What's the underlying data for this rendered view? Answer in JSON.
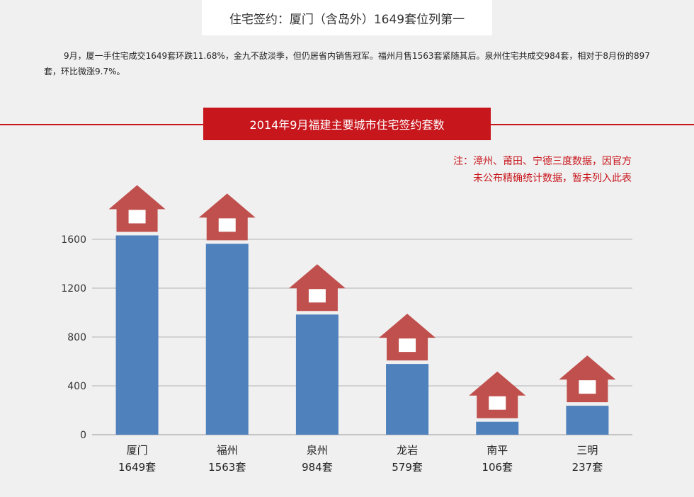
{
  "headline": "住宅签约：厦门（含岛外）1649套位列第一",
  "summary": "9月，厦一手住宅成交1649套环跌11.68%，金九不敌淡季，但仍居省内销售冠军。福州月售1563套紧随其后。泉州住宅共成交984套，相对于8月份的897套，环比微涨9.7%。",
  "note_lines": [
    "注：漳州、莆田、宁德三度数据，因官方",
    "未公布精确统计数据，暂未列入此表"
  ],
  "colors": {
    "bar": "#4f81bd",
    "house": "#c0504d",
    "accent": "#c8161d"
  },
  "chart_data": {
    "type": "bar",
    "title": "2014年9月福建主要城市住宅签约套数",
    "categories": [
      "厦门",
      "福州",
      "泉州",
      "龙岩",
      "南平",
      "三明"
    ],
    "values": [
      1649,
      1563,
      984,
      579,
      106,
      237
    ],
    "value_labels": [
      "1649套",
      "1563套",
      "984套",
      "579套",
      "106套",
      "237套"
    ],
    "ylim": [
      0,
      1600
    ],
    "yticks": [
      0,
      400,
      800,
      1200,
      1600
    ],
    "grid": true,
    "xlabel": "",
    "ylabel": ""
  }
}
